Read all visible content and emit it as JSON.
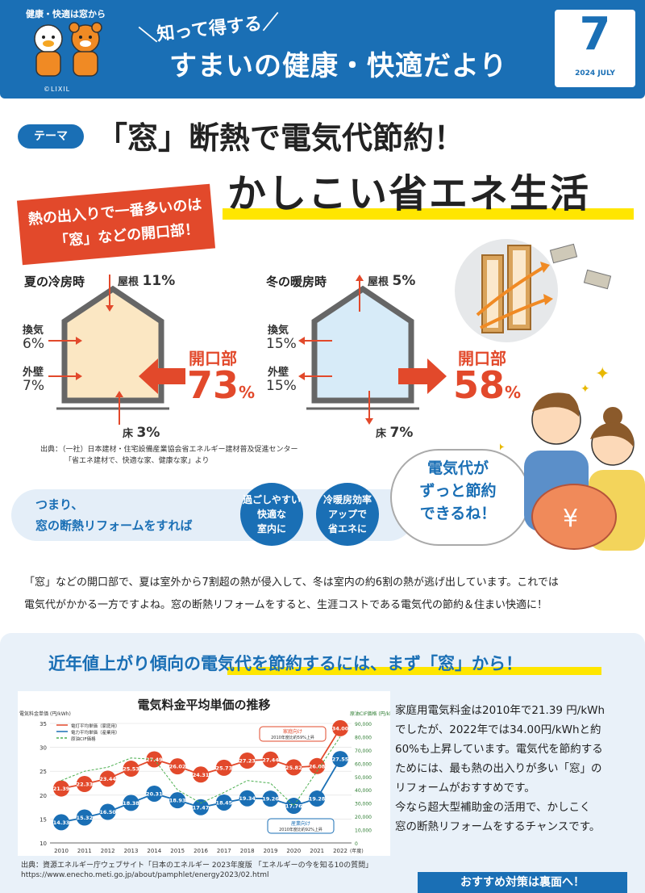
{
  "header": {
    "tagline": "健康・快適は窓から",
    "copyright": "©LIXIL",
    "subtitle": "知って得する",
    "title": "すまいの健康・快適だより",
    "issue_number": "7",
    "issue_date": "2024 JULY"
  },
  "theme": {
    "pill": "テーマ",
    "title": "「窓」断熱で電気代節約！",
    "big_title": "かしこい省エネ生活",
    "callout_line1": "熱の出入りで一番多いのは",
    "callout_line2": "「窓」などの開口部！"
  },
  "summer": {
    "heading": "夏の冷房時",
    "roof_label": "屋根",
    "roof_pct": "11",
    "vent_label": "換気",
    "vent_pct": "6%",
    "wall_label": "外壁",
    "wall_pct": "7%",
    "floor_label": "床",
    "floor_pct": "3",
    "opening_label": "開口部",
    "opening_pct": "73",
    "unit": "%"
  },
  "winter": {
    "heading": "冬の暖房時",
    "roof_label": "屋根",
    "roof_pct": "5",
    "vent_label": "換気",
    "vent_pct": "15%",
    "wall_label": "外壁",
    "wall_pct": "15%",
    "floor_label": "床",
    "floor_pct": "7",
    "opening_label": "開口部",
    "opening_pct": "58",
    "unit": "%"
  },
  "source1": {
    "line1": "出典：（一社）日本建材・住宅設備産業協会省エネルギー建材普及促進センター",
    "line2": "「省エネ建材で、快適な家、健康な家」より"
  },
  "band": {
    "line1": "つまり、",
    "line2": "窓の断熱リフォームをすれば",
    "circle1": [
      "過ごしやすい",
      "快適な",
      "室内に"
    ],
    "circle2": [
      "冷暖房効率",
      "アップで",
      "省エネに"
    ]
  },
  "bubble": {
    "line1": "電気代が",
    "line2": "ずっと節約",
    "line3": "できるね！"
  },
  "paragraph": {
    "line1": "「窓」などの開口部で、夏は室外から7割超の熱が侵入して、冬は室内の約6割の熱が逃げ出しています。これでは",
    "line2": "電気代がかかる一方ですよね。窓の断熱リフォームをすると、生涯コストである電気代の節約＆住まい快適に！"
  },
  "bottom": {
    "heading": "近年値上がり傾向の電気代を節約するには、まず「窓」から！",
    "body": [
      "家庭用電気料金は2010年で21.39 円/kWh",
      "でしたが、2022年では34.00円/kWhと約",
      "60%も上昇しています。電気代を節約する",
      "ためには、最も熱の出入りが多い「窓」の",
      "リフォームがおすすめです。",
      "今なら超大型補助金の活用で、かしこく",
      "窓の断熱リフォームをするチャンスです。"
    ],
    "source_line1": "出典：資源エネルギー庁ウェブサイト「日本のエネルギー 2023年度版 「エネルギーの今を知る10の質問」",
    "source_line2": "https://www.enecho.meti.go.jp/about/pamphlet/energy2023/02.html",
    "cta": "おすすめ対策は裏面へ！"
  },
  "colors": {
    "brand_blue": "#1a6fb5",
    "accent_red": "#e2492b",
    "highlight_yellow": "#ffe600",
    "summer_fill": "#fbe7c3",
    "winter_fill": "#d7ebf8"
  },
  "chart_data": {
    "type": "line",
    "title": "電気料金平均単価の推移",
    "y_left_label": "電気料金単価 (円/kWh)",
    "y_right_label": "原油CIF価格 (円/kl)",
    "xlabel": "(年度)",
    "x": [
      "2010",
      "2011",
      "2012",
      "2013",
      "2014",
      "2015",
      "2016",
      "2017",
      "2018",
      "2019",
      "2020",
      "2021",
      "2022"
    ],
    "y_left_ticks": [
      "35",
      "30",
      "25",
      "20",
      "15",
      "10"
    ],
    "y_right_ticks": [
      "90,000",
      "80,000",
      "70,000",
      "60,000",
      "50,000",
      "40,000",
      "30,000",
      "20,000",
      "10,000",
      "0"
    ],
    "ylim": [
      10,
      35
    ],
    "legend": [
      "電灯平均単価（家庭用）",
      "電力平均単価（産業用）",
      "原油CIF価格"
    ],
    "annotation_home": [
      "家庭向け",
      "2010年度比約59%上昇"
    ],
    "annotation_industry": [
      "産業向け",
      "2010年度比約92%上昇"
    ],
    "series": [
      {
        "name": "電灯平均単価（家庭用）",
        "color": "#e2492b",
        "values": [
          21.39,
          22.33,
          23.44,
          25.53,
          27.49,
          26.02,
          24.31,
          25.73,
          27.23,
          27.44,
          25.82,
          26.08,
          34.0
        ]
      },
      {
        "name": "電力平均単価（産業用）",
        "color": "#1a6fb5",
        "values": [
          14.33,
          15.32,
          16.5,
          18.38,
          20.31,
          18.93,
          17.47,
          18.45,
          19.34,
          19.26,
          17.76,
          19.28,
          27.55
        ]
      },
      {
        "name": "原油CIF価格",
        "color": "#4caf50",
        "values": [
          47000,
          54000,
          57000,
          64000,
          63000,
          40000,
          30000,
          38000,
          47000,
          45000,
          28000,
          54000,
          80000
        ]
      }
    ]
  }
}
